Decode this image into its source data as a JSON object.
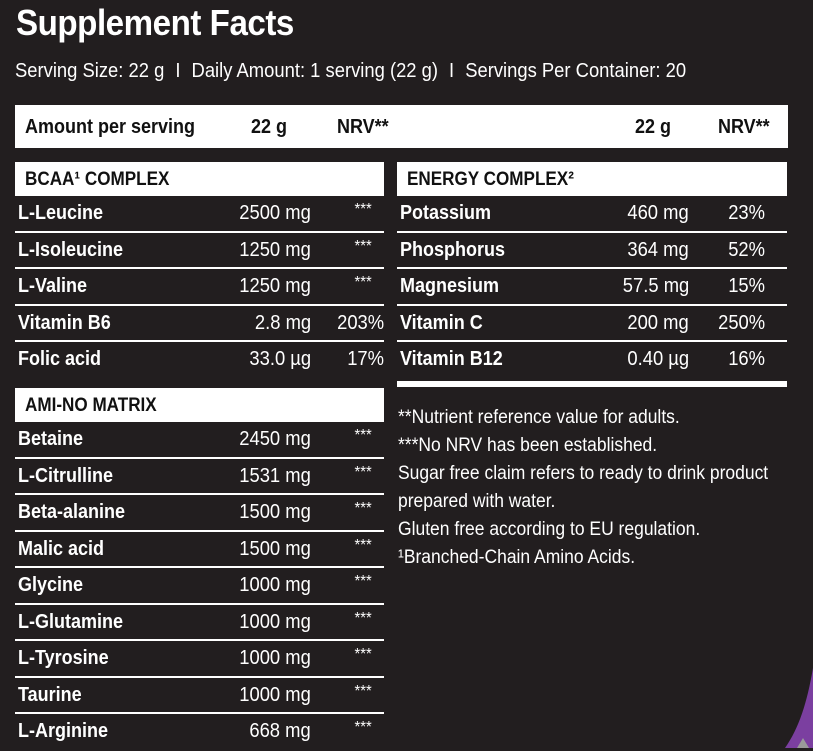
{
  "title": "Supplement Facts",
  "serving": {
    "size": "Serving Size: 22 g",
    "sep1": "I",
    "daily": "Daily Amount: 1 serving (22 g)",
    "sep2": "I",
    "per_container": "Servings Per Container: 20"
  },
  "amount_bar": {
    "label": "Amount per serving",
    "left_amount": "22 g",
    "left_nrv": "NRV**",
    "right_amount": "22 g",
    "right_nrv": "NRV**"
  },
  "bcaa": {
    "header": "BCAA¹ COMPLEX",
    "rows": [
      {
        "name": "L-Leucine",
        "amount": "2500 mg",
        "nrv": "***"
      },
      {
        "name": "L-Isoleucine",
        "amount": "1250 mg",
        "nrv": "***"
      },
      {
        "name": "L-Valine",
        "amount": "1250 mg",
        "nrv": "***"
      },
      {
        "name": "Vitamin B6",
        "amount": "2.8 mg",
        "nrv": "203%"
      },
      {
        "name": "Folic acid",
        "amount": "33.0 µg",
        "nrv": "17%"
      }
    ]
  },
  "amino": {
    "header": "AMI-NO MATRIX",
    "rows": [
      {
        "name": "Betaine",
        "amount": "2450 mg",
        "nrv": "***"
      },
      {
        "name": "L-Citrulline",
        "amount": "1531 mg",
        "nrv": "***"
      },
      {
        "name": "Beta-alanine",
        "amount": "1500 mg",
        "nrv": "***"
      },
      {
        "name": "Malic acid",
        "amount": "1500 mg",
        "nrv": "***"
      },
      {
        "name": "Glycine",
        "amount": "1000 mg",
        "nrv": "***"
      },
      {
        "name": "L-Glutamine",
        "amount": "1000 mg",
        "nrv": "***"
      },
      {
        "name": "L-Tyrosine",
        "amount": "1000 mg",
        "nrv": "***"
      },
      {
        "name": "Taurine",
        "amount": "1000 mg",
        "nrv": "***"
      },
      {
        "name": "L-Arginine",
        "amount": "668 mg",
        "nrv": "***"
      }
    ]
  },
  "energy": {
    "header": "ENERGY COMPLEX²",
    "rows": [
      {
        "name": "Potassium",
        "amount": "460 mg",
        "nrv": "23%"
      },
      {
        "name": "Phosphorus",
        "amount": "364 mg",
        "nrv": "52%"
      },
      {
        "name": "Magnesium",
        "amount": "57.5 mg",
        "nrv": "15%"
      },
      {
        "name": "Vitamin C",
        "amount": "200 mg",
        "nrv": "250%"
      },
      {
        "name": "Vitamin B12",
        "amount": "0.40 µg",
        "nrv": "16%"
      }
    ]
  },
  "notes": [
    "**Nutrient reference value for adults.",
    "***No NRV has been established.",
    "Sugar free claim refers to ready to drink product",
    "prepared with water.",
    "Gluten free according to EU regulation.",
    "¹Branched-Chain Amino Acids."
  ],
  "colors": {
    "background": "#221e1f",
    "panel": "#ffffff",
    "accent": "#7b3fa0"
  }
}
